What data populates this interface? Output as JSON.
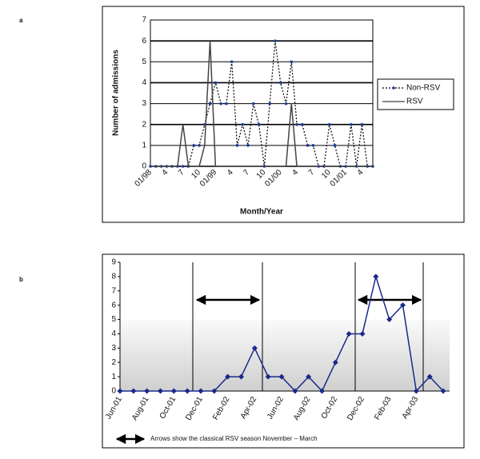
{
  "chart_data": [
    {
      "type": "line",
      "panel": "a",
      "categories": [
        "01/98",
        null,
        null,
        "4",
        null,
        null,
        "7",
        null,
        null,
        "10",
        null,
        null,
        "01/99",
        null,
        null,
        "4",
        null,
        null,
        "7",
        null,
        null,
        "10",
        null,
        null,
        "01/00",
        null,
        null,
        "4",
        null,
        null,
        "7",
        null,
        null,
        "10",
        null,
        null,
        "01/01",
        null,
        null,
        "4",
        null,
        null
      ],
      "series": [
        {
          "name": "Non-RSV",
          "color": "#1f3c9a",
          "line_color": "#000000",
          "line_style": "dotted",
          "marker": "circle",
          "values": [
            0,
            0,
            0,
            0,
            0,
            0,
            0,
            0,
            1,
            1,
            2,
            3,
            4,
            3,
            3,
            5,
            1,
            2,
            1,
            3,
            2,
            0,
            3,
            6,
            4,
            3,
            5,
            2,
            2,
            1,
            1,
            0,
            0,
            2,
            1,
            0,
            0,
            2,
            0,
            2,
            0,
            0
          ]
        },
        {
          "name": "RSV",
          "color": "#444444",
          "line_color": "#444444",
          "line_style": "solid",
          "marker": "none",
          "values": [
            0,
            0,
            0,
            0,
            0,
            0,
            2,
            0,
            0,
            0,
            1,
            6,
            0,
            0,
            0,
            0,
            0,
            0,
            0,
            0,
            0,
            0,
            0,
            0,
            0,
            0,
            3,
            0,
            0,
            0,
            0,
            0,
            0,
            0,
            0,
            0,
            0,
            0,
            0,
            0,
            0,
            0
          ]
        }
      ],
      "ylim": [
        0,
        7
      ],
      "yticks": [
        0,
        1,
        2,
        3,
        4,
        5,
        6,
        7
      ],
      "grid": true,
      "legend": "right",
      "ylabel": "Number of admissions",
      "xlabel": "Month/Year"
    },
    {
      "type": "line",
      "panel": "b",
      "categories": [
        "Jun-01",
        null,
        "Aug-01",
        null,
        "Oct-01",
        null,
        "Dec-01",
        null,
        "Feb-02",
        null,
        "Apr-02",
        null,
        "Jun-02",
        null,
        "Aug-02",
        null,
        "Oct-02",
        null,
        "Dec-02",
        null,
        "Feb-03",
        null,
        "Apr-03",
        null,
        null
      ],
      "values": [
        0,
        0,
        0,
        0,
        0,
        0,
        0,
        0,
        1,
        1,
        3,
        1,
        1,
        0,
        1,
        0,
        2,
        4,
        4,
        8,
        5,
        6,
        0,
        1,
        0
      ],
      "color": "#1a2a8a",
      "marker": "diamond",
      "ylim": [
        0,
        9
      ],
      "yticks": [
        0,
        1,
        2,
        3,
        4,
        5,
        6,
        7,
        8,
        9
      ],
      "grid": false,
      "annotation": "Arrows show the classical RSV season November – March"
    }
  ]
}
